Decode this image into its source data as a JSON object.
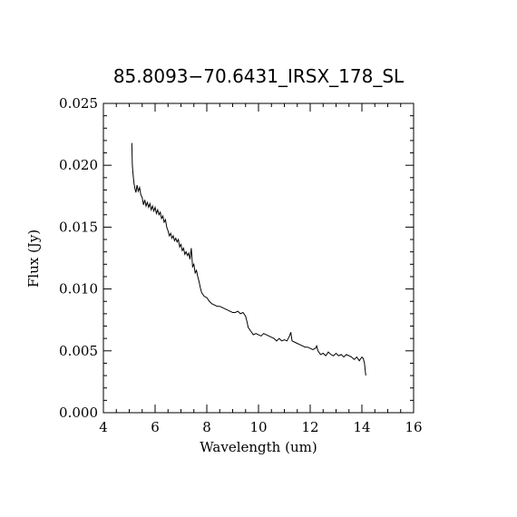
{
  "chart_data": {
    "type": "line",
    "title": "85.8093−70.6431_IRSX_178_SL",
    "xlabel": "Wavelength (um)",
    "ylabel": "Flux (Jy)",
    "xlim": [
      4,
      16
    ],
    "ylim": [
      0.0,
      0.025
    ],
    "x_ticks": [
      "4",
      "6",
      "8",
      "10",
      "12",
      "14",
      "16"
    ],
    "y_ticks": [
      "0.000",
      "0.005",
      "0.010",
      "0.015",
      "0.020",
      "0.025"
    ],
    "grid": false,
    "legend": "none",
    "series": [
      {
        "color": "#000000",
        "x": [
          5.1,
          5.12,
          5.15,
          5.18,
          5.22,
          5.26,
          5.3,
          5.35,
          5.4,
          5.45,
          5.5,
          5.55,
          5.6,
          5.65,
          5.7,
          5.75,
          5.8,
          5.85,
          5.9,
          5.95,
          6.0,
          6.05,
          6.1,
          6.15,
          6.2,
          6.25,
          6.3,
          6.35,
          6.4,
          6.45,
          6.5,
          6.55,
          6.6,
          6.65,
          6.7,
          6.75,
          6.8,
          6.85,
          6.9,
          6.95,
          7.0,
          7.05,
          7.1,
          7.15,
          7.2,
          7.25,
          7.3,
          7.35,
          7.4,
          7.45,
          7.5,
          7.55,
          7.6,
          7.65,
          7.7,
          7.75,
          7.8,
          7.9,
          8.0,
          8.1,
          8.2,
          8.3,
          8.4,
          8.5,
          8.6,
          8.7,
          8.8,
          8.9,
          9.0,
          9.1,
          9.2,
          9.3,
          9.4,
          9.5,
          9.55,
          9.6,
          9.7,
          9.8,
          9.9,
          10.0,
          10.1,
          10.2,
          10.3,
          10.4,
          10.5,
          10.6,
          10.7,
          10.8,
          10.9,
          11.0,
          11.1,
          11.2,
          11.25,
          11.3,
          11.4,
          11.5,
          11.6,
          11.7,
          11.8,
          11.9,
          12.0,
          12.1,
          12.2,
          12.25,
          12.3,
          12.4,
          12.5,
          12.6,
          12.7,
          12.8,
          12.9,
          13.0,
          13.1,
          13.2,
          13.3,
          13.4,
          13.5,
          13.6,
          13.7,
          13.8,
          13.9,
          14.0,
          14.05,
          14.1,
          14.15
        ],
        "y": [
          0.0218,
          0.02,
          0.0192,
          0.0186,
          0.0181,
          0.0178,
          0.0184,
          0.0179,
          0.0182,
          0.0176,
          0.0174,
          0.0168,
          0.0172,
          0.0167,
          0.017,
          0.0166,
          0.0169,
          0.0164,
          0.0167,
          0.0163,
          0.0166,
          0.0161,
          0.0164,
          0.016,
          0.0162,
          0.0157,
          0.0159,
          0.0154,
          0.0156,
          0.015,
          0.0147,
          0.0143,
          0.0145,
          0.0141,
          0.0143,
          0.0139,
          0.0141,
          0.0138,
          0.014,
          0.0134,
          0.0136,
          0.0131,
          0.0133,
          0.0128,
          0.013,
          0.0127,
          0.0129,
          0.0124,
          0.0133,
          0.0118,
          0.012,
          0.0113,
          0.0115,
          0.011,
          0.0106,
          0.0101,
          0.0097,
          0.0094,
          0.0093,
          0.009,
          0.0088,
          0.0087,
          0.0086,
          0.0086,
          0.0085,
          0.0084,
          0.0083,
          0.0082,
          0.0081,
          0.0081,
          0.0082,
          0.008,
          0.0081,
          0.0078,
          0.0074,
          0.0069,
          0.0066,
          0.0063,
          0.0064,
          0.0063,
          0.0062,
          0.0064,
          0.0063,
          0.0062,
          0.0061,
          0.006,
          0.0058,
          0.006,
          0.0058,
          0.0059,
          0.0058,
          0.0062,
          0.0065,
          0.0058,
          0.0057,
          0.0056,
          0.0055,
          0.0054,
          0.0053,
          0.0053,
          0.0052,
          0.0051,
          0.0052,
          0.0054,
          0.005,
          0.0047,
          0.0048,
          0.0046,
          0.0049,
          0.0047,
          0.0046,
          0.0048,
          0.0046,
          0.0047,
          0.0045,
          0.0047,
          0.0046,
          0.0045,
          0.0043,
          0.0045,
          0.0042,
          0.0045,
          0.0044,
          0.004,
          0.003
        ]
      }
    ]
  }
}
